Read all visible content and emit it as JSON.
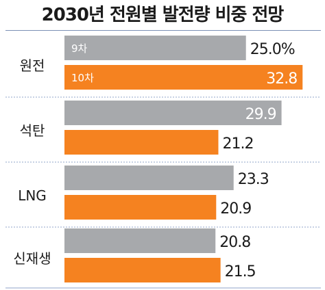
{
  "chart_data": {
    "type": "bar",
    "orientation": "horizontal",
    "title": "2030년 전원별 발전량 비중 전망",
    "categories": [
      "원전",
      "석탄",
      "LNG",
      "신재생"
    ],
    "series": [
      {
        "name": "9차",
        "color": "#a7a9ac",
        "values": [
          25.0,
          29.9,
          23.3,
          20.8
        ],
        "labels": [
          "25.0%",
          "29.9",
          "23.3",
          "20.8"
        ]
      },
      {
        "name": "10차",
        "color": "#f58220",
        "values": [
          32.8,
          21.2,
          20.9,
          21.5
        ],
        "labels": [
          "32.8",
          "21.2",
          "20.9",
          "21.5"
        ]
      }
    ],
    "unit": "%",
    "xlim": [
      0,
      34
    ],
    "grid": false,
    "legend": "inside-first-bars"
  }
}
